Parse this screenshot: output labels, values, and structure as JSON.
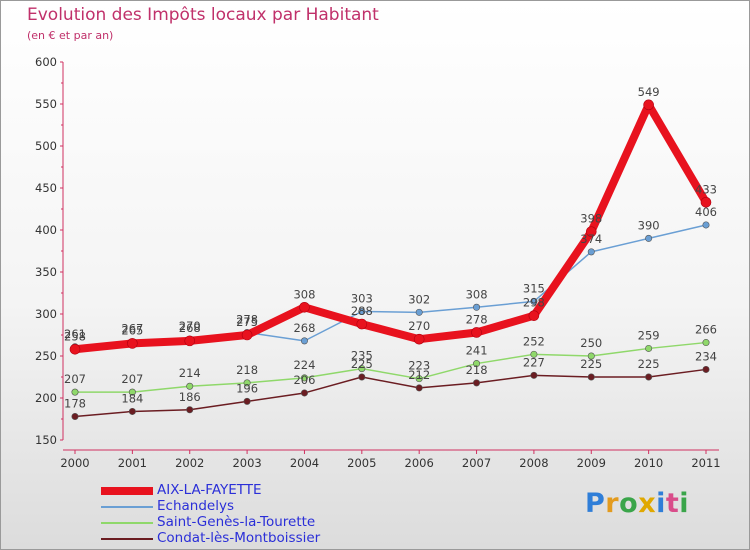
{
  "header": {
    "title": "Evolution des Impôts locaux par Habitant",
    "subtitle": "(en € et par an)"
  },
  "chart_data": {
    "type": "line",
    "x": [
      "2000",
      "2001",
      "2002",
      "2003",
      "2004",
      "2005",
      "2006",
      "2007",
      "2008",
      "2009",
      "2010",
      "2011"
    ],
    "ylim": [
      150,
      600
    ],
    "yticks": [
      150,
      200,
      250,
      300,
      350,
      400,
      450,
      500,
      550,
      600
    ],
    "grid": false,
    "series": [
      {
        "name": "AIX-LA-FAYETTE",
        "color": "#e8121e",
        "values": [
          258,
          265,
          268,
          275,
          308,
          288,
          270,
          278,
          298,
          398,
          549,
          433
        ],
        "labels": [
          "258",
          "265",
          "268",
          "275",
          "308",
          "288",
          "270",
          "278",
          "298",
          "398",
          "549",
          "433"
        ]
      },
      {
        "name": "Echandelys",
        "color": "#6a9fd4",
        "values": [
          261,
          267,
          270,
          278,
          268,
          303,
          302,
          308,
          315,
          374,
          390,
          406
        ],
        "labels": [
          "261",
          "267",
          "270",
          "278",
          "268",
          "303",
          "302",
          "308",
          "315",
          "374",
          "390",
          "406"
        ]
      },
      {
        "name": "Saint-Genès-la-Tourette",
        "color": "#8fd86a",
        "values": [
          207,
          207,
          214,
          218,
          224,
          235,
          223,
          241,
          252,
          250,
          259,
          266
        ],
        "labels": [
          "207",
          "207",
          "214",
          "218",
          "224",
          "235",
          "223",
          "241",
          "252",
          "250",
          "259",
          "266"
        ]
      },
      {
        "name": "Condat-lès-Montboissier",
        "color": "#6b1d22",
        "values": [
          178,
          184,
          186,
          196,
          206,
          225,
          212,
          218,
          227,
          225,
          225,
          234
        ],
        "labels": [
          "178",
          "184",
          "186",
          "196",
          "206",
          "225",
          "212",
          "218",
          "227",
          "225",
          "225",
          "234"
        ]
      }
    ],
    "title": "Evolution des Impôts locaux par Habitant",
    "xlabel": "",
    "ylabel": "(en € et par an)",
    "legend_position": "bottom-left"
  },
  "legend": {
    "items": [
      {
        "label": "AIX-LA-FAYETTE",
        "color": "#e8121e"
      },
      {
        "label": "Echandelys",
        "color": "#6a9fd4"
      },
      {
        "label": "Saint-Genès-la-Tourette",
        "color": "#8fd86a"
      },
      {
        "label": "Condat-lès-Montboissier",
        "color": "#6b1d22"
      }
    ]
  },
  "brand": {
    "letters": [
      "P",
      "r",
      "o",
      "x",
      "i",
      "t",
      "i"
    ],
    "colors": [
      "#2f7ed8",
      "#e39b1e",
      "#3aa54a",
      "#e0a800",
      "#2f7ed8",
      "#d94d8a",
      "#3aa54a"
    ]
  }
}
